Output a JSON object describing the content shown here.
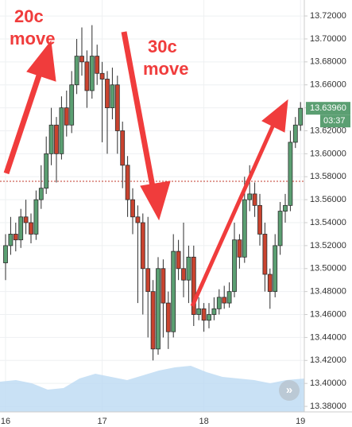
{
  "chart_data": {
    "type": "candlestick",
    "categories": [
      "16",
      null,
      null,
      null,
      null,
      null,
      null,
      null,
      null,
      null,
      null,
      null,
      null,
      null,
      null,
      null,
      null,
      null,
      null,
      "17",
      null,
      null,
      null,
      null,
      null,
      null,
      null,
      null,
      null,
      null,
      null,
      null,
      null,
      null,
      null,
      null,
      null,
      null,
      null,
      "18",
      null,
      null,
      null,
      null,
      null,
      null,
      null,
      null,
      null,
      null,
      null,
      null,
      null,
      null,
      null,
      null,
      null,
      null,
      "19"
    ],
    "open": [
      13.505,
      13.52,
      13.53,
      13.525,
      13.545,
      13.54,
      13.53,
      13.56,
      13.57,
      13.6,
      13.625,
      13.6,
      13.64,
      13.625,
      13.66,
      13.685,
      13.68,
      13.655,
      13.685,
      13.67,
      13.665,
      13.64,
      13.66,
      13.62,
      13.59,
      13.56,
      13.545,
      13.54,
      13.5,
      13.48,
      13.43,
      13.5,
      13.47,
      13.445,
      13.515,
      13.5,
      13.49,
      13.51,
      13.46,
      13.465,
      13.455,
      13.46,
      13.465,
      13.475,
      13.47,
      13.48,
      13.525,
      13.51,
      13.56,
      13.565,
      13.555,
      13.53,
      13.495,
      13.48,
      13.52,
      13.55,
      13.555,
      13.61,
      13.625
    ],
    "high": [
      13.53,
      13.545,
      13.54,
      13.552,
      13.56,
      13.548,
      13.568,
      13.59,
      13.615,
      13.64,
      13.632,
      13.65,
      13.655,
      13.672,
      13.7,
      13.71,
      13.69,
      13.712,
      13.695,
      13.68,
      13.672,
      13.675,
      13.668,
      13.628,
      13.598,
      13.57,
      13.555,
      13.548,
      13.545,
      13.49,
      13.51,
      13.508,
      13.48,
      13.53,
      13.525,
      13.54,
      13.52,
      13.52,
      13.475,
      13.47,
      13.47,
      13.475,
      13.482,
      13.485,
      13.488,
      13.54,
      13.53,
      13.58,
      13.59,
      13.575,
      13.565,
      13.54,
      13.5,
      13.53,
      13.558,
      13.565,
      13.62,
      13.632,
      13.645
    ],
    "low": [
      13.49,
      13.512,
      13.515,
      13.518,
      13.53,
      13.522,
      13.525,
      13.552,
      13.565,
      13.59,
      13.575,
      13.595,
      13.615,
      13.618,
      13.652,
      13.668,
      13.64,
      13.648,
      13.66,
      13.61,
      13.6,
      13.63,
      13.6,
      13.57,
      13.545,
      13.53,
      13.47,
      13.46,
      13.44,
      13.42,
      13.425,
      13.44,
      13.43,
      13.44,
      13.49,
      13.475,
      13.47,
      13.45,
      13.455,
      13.445,
      13.448,
      13.455,
      13.46,
      13.465,
      13.466,
      13.475,
      13.5,
      13.505,
      13.55,
      13.545,
      13.52,
      13.48,
      13.465,
      13.475,
      13.512,
      13.54,
      13.55,
      13.605,
      13.62
    ],
    "close": [
      13.52,
      13.53,
      13.525,
      13.545,
      13.54,
      13.53,
      13.56,
      13.57,
      13.6,
      13.625,
      13.6,
      13.64,
      13.625,
      13.66,
      13.685,
      13.68,
      13.655,
      13.685,
      13.67,
      13.665,
      13.64,
      13.66,
      13.62,
      13.59,
      13.56,
      13.545,
      13.54,
      13.5,
      13.48,
      13.43,
      13.5,
      13.47,
      13.445,
      13.515,
      13.5,
      13.49,
      13.51,
      13.46,
      13.465,
      13.455,
      13.46,
      13.465,
      13.475,
      13.47,
      13.48,
      13.525,
      13.51,
      13.56,
      13.565,
      13.555,
      13.53,
      13.495,
      13.48,
      13.52,
      13.55,
      13.555,
      13.61,
      13.625,
      13.6396
    ],
    "up_color": "#5b9f72",
    "down_color": "#c9432f",
    "last_price_label": "13.63960",
    "countdown": "03:37",
    "ref_line": 13.576,
    "annotations": [
      {
        "lines": [
          "20c",
          "move"
        ]
      },
      {
        "lines": [
          "30c",
          "move"
        ]
      }
    ],
    "ylim": [
      13.3752,
      13.7339
    ],
    "yticks": [
      {
        "value": 13.38,
        "label": "13.38000"
      },
      {
        "value": 13.4,
        "label": "13.40000"
      },
      {
        "value": 13.42,
        "label": "13.42000"
      },
      {
        "value": 13.44,
        "label": "13.44000"
      },
      {
        "value": 13.46,
        "label": "13.46000"
      },
      {
        "value": 13.48,
        "label": "13.48000"
      },
      {
        "value": 13.5,
        "label": "13.50000"
      },
      {
        "value": 13.52,
        "label": "13.52000"
      },
      {
        "value": 13.54,
        "label": "13.54000"
      },
      {
        "value": 13.56,
        "label": "13.56000"
      },
      {
        "value": 13.58,
        "label": "13.58000"
      },
      {
        "value": 13.6,
        "label": "13.60000"
      },
      {
        "value": 13.62,
        "label": "13.62000"
      },
      {
        "value": 13.64,
        "label": "13.64000"
      },
      {
        "value": 13.66,
        "label": "13.66000"
      },
      {
        "value": 13.68,
        "label": "13.68000"
      },
      {
        "value": 13.7,
        "label": "13.70000"
      },
      {
        "value": 13.72,
        "label": "13.72000"
      }
    ],
    "grid": true
  }
}
